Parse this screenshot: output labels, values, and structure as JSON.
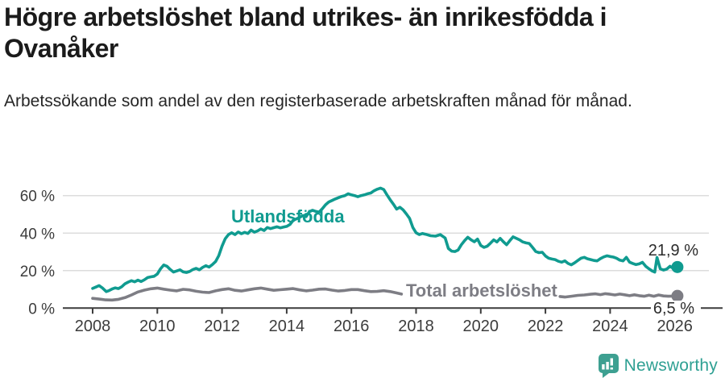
{
  "header": {
    "title": "Högre arbetslöshet bland utrikes- än inrikesfödda i Ovanåker",
    "subtitle": "Arbetssökande som andel av den registerbaserade arbetskraften månad för månad."
  },
  "footer": {
    "brand": "Newsworthy",
    "brand_color": "#2fa093"
  },
  "colors": {
    "accent_teal": "#109b90",
    "series_gray": "#7d7d84",
    "axis": "#3c3c3c",
    "gridline": "#dcdcdc",
    "value_label": "#2b2b2b"
  },
  "chart_data": {
    "type": "line",
    "title": "Högre arbetslöshet bland utrikes- än inrikesfödda i Ovanåker",
    "subtitle": "Arbetssökande som andel av den registerbaserade arbetskraften månad för månad.",
    "xlabel": "",
    "ylabel": "",
    "x_ticks": [
      "2008",
      "2010",
      "2012",
      "2014",
      "2016",
      "2018",
      "2020",
      "2022",
      "2024",
      "2026"
    ],
    "y_ticks": [
      [
        0,
        "0 %"
      ],
      [
        20,
        "20 %"
      ],
      [
        40,
        "40 %"
      ],
      [
        60,
        "60 %"
      ]
    ],
    "xlim": [
      2007.1,
      2027.4
    ],
    "ylim": [
      0,
      70
    ],
    "grid": "horizontal",
    "legend_position": "inline-labels",
    "series": [
      {
        "name": "Utlandsfödda",
        "color": "#109b90",
        "end_label": "21,9 %",
        "end_value": 21.9,
        "points": [
          [
            2008.0,
            10.5
          ],
          [
            2008.1,
            11.2
          ],
          [
            2008.2,
            12.0
          ],
          [
            2008.3,
            10.8
          ],
          [
            2008.42,
            8.8
          ],
          [
            2008.5,
            9.3
          ],
          [
            2008.6,
            10.2
          ],
          [
            2008.7,
            10.8
          ],
          [
            2008.8,
            10.4
          ],
          [
            2008.9,
            11.4
          ],
          [
            2009.0,
            13.0
          ],
          [
            2009.1,
            13.9
          ],
          [
            2009.2,
            14.6
          ],
          [
            2009.3,
            14.0
          ],
          [
            2009.4,
            14.9
          ],
          [
            2009.5,
            14.2
          ],
          [
            2009.6,
            15.1
          ],
          [
            2009.7,
            16.3
          ],
          [
            2009.8,
            16.7
          ],
          [
            2009.9,
            17.0
          ],
          [
            2010.0,
            18.2
          ],
          [
            2010.1,
            21.0
          ],
          [
            2010.2,
            23.0
          ],
          [
            2010.3,
            22.3
          ],
          [
            2010.4,
            20.6
          ],
          [
            2010.5,
            19.2
          ],
          [
            2010.6,
            19.8
          ],
          [
            2010.7,
            20.4
          ],
          [
            2010.8,
            19.3
          ],
          [
            2010.9,
            19.0
          ],
          [
            2011.0,
            19.5
          ],
          [
            2011.1,
            20.6
          ],
          [
            2011.2,
            21.2
          ],
          [
            2011.3,
            20.4
          ],
          [
            2011.4,
            21.7
          ],
          [
            2011.5,
            22.6
          ],
          [
            2011.6,
            21.9
          ],
          [
            2011.7,
            23.2
          ],
          [
            2011.8,
            24.8
          ],
          [
            2011.9,
            28.0
          ],
          [
            2012.0,
            33.0
          ],
          [
            2012.1,
            37.0
          ],
          [
            2012.2,
            39.2
          ],
          [
            2012.3,
            40.2
          ],
          [
            2012.4,
            39.2
          ],
          [
            2012.5,
            40.6
          ],
          [
            2012.6,
            39.7
          ],
          [
            2012.7,
            40.4
          ],
          [
            2012.8,
            39.8
          ],
          [
            2012.9,
            41.6
          ],
          [
            2013.0,
            40.5
          ],
          [
            2013.1,
            41.2
          ],
          [
            2013.2,
            42.2
          ],
          [
            2013.3,
            41.4
          ],
          [
            2013.4,
            43.0
          ],
          [
            2013.5,
            42.4
          ],
          [
            2013.6,
            42.9
          ],
          [
            2013.7,
            43.4
          ],
          [
            2013.8,
            42.8
          ],
          [
            2013.9,
            43.2
          ],
          [
            2014.0,
            43.6
          ],
          [
            2014.1,
            44.6
          ],
          [
            2014.2,
            46.8
          ],
          [
            2014.3,
            47.6
          ],
          [
            2014.4,
            48.4
          ],
          [
            2014.5,
            49.4
          ],
          [
            2014.6,
            48.8
          ],
          [
            2014.7,
            51.4
          ],
          [
            2014.8,
            52.2
          ],
          [
            2014.9,
            51.6
          ],
          [
            2015.0,
            51.2
          ],
          [
            2015.1,
            53.0
          ],
          [
            2015.2,
            55.1
          ],
          [
            2015.3,
            56.6
          ],
          [
            2015.4,
            57.4
          ],
          [
            2015.5,
            58.2
          ],
          [
            2015.6,
            58.9
          ],
          [
            2015.7,
            59.6
          ],
          [
            2015.8,
            60.0
          ],
          [
            2015.9,
            61.0
          ],
          [
            2016.0,
            60.4
          ],
          [
            2016.1,
            60.0
          ],
          [
            2016.2,
            59.4
          ],
          [
            2016.3,
            60.0
          ],
          [
            2016.4,
            60.4
          ],
          [
            2016.5,
            61.0
          ],
          [
            2016.6,
            61.4
          ],
          [
            2016.7,
            62.6
          ],
          [
            2016.8,
            63.4
          ],
          [
            2016.9,
            64.0
          ],
          [
            2017.0,
            63.3
          ],
          [
            2017.1,
            60.4
          ],
          [
            2017.2,
            57.8
          ],
          [
            2017.3,
            55.4
          ],
          [
            2017.4,
            52.8
          ],
          [
            2017.5,
            53.8
          ],
          [
            2017.6,
            52.4
          ],
          [
            2017.7,
            50.2
          ],
          [
            2017.8,
            47.8
          ],
          [
            2017.9,
            43.0
          ],
          [
            2018.0,
            40.2
          ],
          [
            2018.1,
            39.2
          ],
          [
            2018.2,
            39.8
          ],
          [
            2018.3,
            39.4
          ],
          [
            2018.45,
            38.6
          ],
          [
            2018.6,
            38.4
          ],
          [
            2018.75,
            39.2
          ],
          [
            2018.9,
            37.4
          ],
          [
            2019.0,
            31.8
          ],
          [
            2019.1,
            30.4
          ],
          [
            2019.2,
            30.2
          ],
          [
            2019.3,
            31.0
          ],
          [
            2019.4,
            33.8
          ],
          [
            2019.5,
            36.0
          ],
          [
            2019.6,
            37.8
          ],
          [
            2019.7,
            36.4
          ],
          [
            2019.8,
            35.4
          ],
          [
            2019.9,
            36.8
          ],
          [
            2020.0,
            33.4
          ],
          [
            2020.1,
            32.4
          ],
          [
            2020.2,
            33.0
          ],
          [
            2020.3,
            34.6
          ],
          [
            2020.4,
            36.4
          ],
          [
            2020.5,
            35.3
          ],
          [
            2020.6,
            37.2
          ],
          [
            2020.7,
            35.4
          ],
          [
            2020.8,
            33.8
          ],
          [
            2020.9,
            36.0
          ],
          [
            2021.0,
            38.0
          ],
          [
            2021.1,
            37.2
          ],
          [
            2021.2,
            36.4
          ],
          [
            2021.3,
            35.3
          ],
          [
            2021.4,
            34.8
          ],
          [
            2021.5,
            34.5
          ],
          [
            2021.6,
            32.4
          ],
          [
            2021.7,
            30.2
          ],
          [
            2021.8,
            29.6
          ],
          [
            2021.9,
            29.8
          ],
          [
            2022.0,
            27.8
          ],
          [
            2022.1,
            26.6
          ],
          [
            2022.2,
            26.2
          ],
          [
            2022.3,
            25.9
          ],
          [
            2022.4,
            25.0
          ],
          [
            2022.5,
            24.5
          ],
          [
            2022.6,
            25.2
          ],
          [
            2022.7,
            23.8
          ],
          [
            2022.8,
            23.1
          ],
          [
            2022.9,
            24.1
          ],
          [
            2023.0,
            25.4
          ],
          [
            2023.1,
            26.6
          ],
          [
            2023.2,
            27.1
          ],
          [
            2023.3,
            26.3
          ],
          [
            2023.4,
            25.9
          ],
          [
            2023.5,
            25.4
          ],
          [
            2023.6,
            25.2
          ],
          [
            2023.7,
            26.4
          ],
          [
            2023.8,
            27.3
          ],
          [
            2023.9,
            27.9
          ],
          [
            2024.0,
            27.5
          ],
          [
            2024.1,
            27.2
          ],
          [
            2024.2,
            26.6
          ],
          [
            2024.3,
            25.6
          ],
          [
            2024.4,
            25.2
          ],
          [
            2024.5,
            27.1
          ],
          [
            2024.6,
            24.5
          ],
          [
            2024.7,
            23.8
          ],
          [
            2024.8,
            23.2
          ],
          [
            2024.9,
            23.6
          ],
          [
            2025.0,
            24.4
          ],
          [
            2025.1,
            22.3
          ],
          [
            2025.2,
            21.0
          ],
          [
            2025.3,
            19.8
          ],
          [
            2025.38,
            19.2
          ],
          [
            2025.45,
            27.0
          ],
          [
            2025.55,
            21.0
          ],
          [
            2025.65,
            20.3
          ],
          [
            2025.75,
            20.8
          ],
          [
            2025.85,
            22.3
          ],
          [
            2025.95,
            21.2
          ],
          [
            2026.08,
            21.9
          ]
        ]
      },
      {
        "name": "Total arbetslöshet",
        "color": "#7d7d84",
        "end_label": "6,5 %",
        "end_value": 6.5,
        "points": [
          [
            2008.0,
            5.2
          ],
          [
            2008.2,
            4.8
          ],
          [
            2008.4,
            4.4
          ],
          [
            2008.6,
            4.3
          ],
          [
            2008.8,
            4.7
          ],
          [
            2009.0,
            5.6
          ],
          [
            2009.2,
            7.0
          ],
          [
            2009.4,
            8.6
          ],
          [
            2009.6,
            9.6
          ],
          [
            2009.8,
            10.3
          ],
          [
            2010.0,
            10.7
          ],
          [
            2010.2,
            10.1
          ],
          [
            2010.4,
            9.6
          ],
          [
            2010.6,
            9.2
          ],
          [
            2010.8,
            10.0
          ],
          [
            2011.0,
            9.7
          ],
          [
            2011.2,
            9.0
          ],
          [
            2011.4,
            8.5
          ],
          [
            2011.6,
            8.3
          ],
          [
            2011.8,
            9.2
          ],
          [
            2012.0,
            9.9
          ],
          [
            2012.2,
            10.3
          ],
          [
            2012.4,
            9.5
          ],
          [
            2012.6,
            9.1
          ],
          [
            2012.8,
            9.7
          ],
          [
            2013.0,
            10.3
          ],
          [
            2013.2,
            10.7
          ],
          [
            2013.4,
            10.1
          ],
          [
            2013.6,
            9.5
          ],
          [
            2013.8,
            9.8
          ],
          [
            2014.0,
            10.1
          ],
          [
            2014.2,
            10.4
          ],
          [
            2014.4,
            9.7
          ],
          [
            2014.6,
            9.2
          ],
          [
            2014.8,
            9.6
          ],
          [
            2015.0,
            10.1
          ],
          [
            2015.2,
            10.2
          ],
          [
            2015.4,
            9.6
          ],
          [
            2015.6,
            9.1
          ],
          [
            2015.8,
            9.4
          ],
          [
            2016.0,
            9.9
          ],
          [
            2016.2,
            9.9
          ],
          [
            2016.4,
            9.3
          ],
          [
            2016.6,
            8.8
          ],
          [
            2016.8,
            8.9
          ],
          [
            2017.0,
            9.3
          ],
          [
            2017.2,
            8.8
          ],
          [
            2017.4,
            8.1
          ],
          [
            2017.55,
            7.5
          ],
          null,
          [
            2022.45,
            6.2
          ],
          [
            2022.6,
            5.9
          ],
          [
            2022.8,
            6.3
          ],
          [
            2023.0,
            6.8
          ],
          [
            2023.2,
            7.0
          ],
          [
            2023.4,
            7.4
          ],
          [
            2023.55,
            7.6
          ],
          [
            2023.7,
            7.2
          ],
          [
            2023.85,
            7.7
          ],
          [
            2024.0,
            7.4
          ],
          [
            2024.15,
            7.0
          ],
          [
            2024.3,
            7.5
          ],
          [
            2024.45,
            7.1
          ],
          [
            2024.6,
            6.6
          ],
          [
            2024.75,
            7.1
          ],
          [
            2024.9,
            6.6
          ],
          [
            2025.05,
            6.3
          ],
          [
            2025.2,
            6.9
          ],
          [
            2025.35,
            6.3
          ],
          [
            2025.5,
            7.0
          ],
          [
            2025.65,
            6.5
          ],
          [
            2025.8,
            6.3
          ],
          [
            2025.95,
            6.4
          ],
          [
            2026.08,
            6.5
          ]
        ]
      }
    ]
  }
}
